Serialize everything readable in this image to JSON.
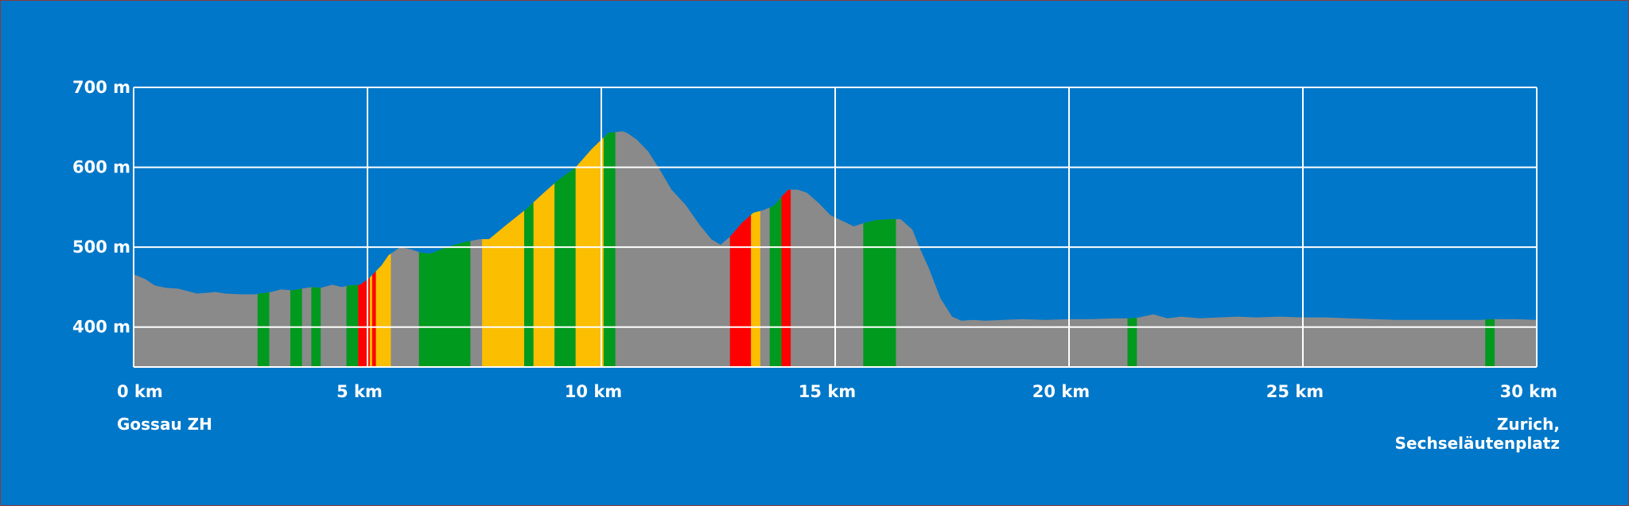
{
  "chart_data": {
    "type": "area",
    "title": "",
    "xlabel": "",
    "ylabel": "",
    "xlim": [
      0,
      30
    ],
    "ylim": [
      350,
      700
    ],
    "x_ticks": [
      0,
      5,
      10,
      15,
      20,
      25,
      30
    ],
    "x_tick_labels": [
      "0 km",
      "5 km",
      "10 km",
      "15 km",
      "20 km",
      "25 km",
      "30 km"
    ],
    "y_ticks": [
      400,
      500,
      600,
      700
    ],
    "y_tick_labels": [
      "400 m",
      "500 m",
      "600 m",
      "700 m"
    ],
    "grid": true,
    "colors": {
      "background": "#0077c8",
      "terrain": "#8a8a8a",
      "grid": "#ffffff",
      "green": "#009a1e",
      "yellow": "#fbbe00",
      "red": "#ff0000"
    },
    "start_label": "Gossau ZH",
    "end_label": [
      "Zurich,",
      "Sechseläutenplatz"
    ],
    "profile": {
      "x": [
        0,
        0.25,
        0.45,
        0.7,
        0.95,
        1.15,
        1.35,
        1.6,
        1.75,
        1.95,
        2.3,
        2.6,
        2.95,
        3.15,
        3.4,
        3.6,
        3.8,
        4.0,
        4.25,
        4.45,
        4.6,
        4.85,
        5.05,
        5.3,
        5.45,
        5.7,
        5.95,
        6.15,
        6.35,
        6.7,
        7.05,
        7.4,
        7.6,
        7.95,
        8.4,
        8.75,
        9.1,
        9.45,
        9.8,
        10.15,
        10.45,
        10.55,
        10.75,
        11.0,
        11.25,
        11.5,
        11.8,
        12.1,
        12.35,
        12.55,
        12.75,
        13.0,
        13.25,
        13.45,
        13.7,
        13.85,
        14.0,
        14.2,
        14.4,
        14.65,
        14.9,
        15.15,
        15.4,
        15.6,
        15.9,
        16.2,
        16.4,
        16.65,
        16.8,
        17.0,
        17.25,
        17.5,
        17.7,
        17.95,
        18.2,
        18.6,
        19.0,
        19.5,
        20.0,
        20.5,
        21.0,
        21.3,
        21.5,
        21.8,
        22.1,
        22.4,
        22.8,
        23.2,
        23.6,
        24.0,
        24.5,
        25.0,
        25.5,
        26.0,
        26.5,
        27.0,
        27.5,
        28.0,
        28.5,
        28.8,
        29.1,
        29.5,
        30.0
      ],
      "elev": [
        466,
        460,
        452,
        449,
        448,
        445,
        442,
        443,
        444,
        442,
        441,
        441,
        444,
        447,
        446,
        448,
        450,
        449,
        453,
        450,
        452,
        453,
        462,
        477,
        490,
        500,
        497,
        493,
        492,
        500,
        506,
        510,
        510,
        527,
        548,
        567,
        585,
        600,
        623,
        643,
        645,
        643,
        635,
        620,
        597,
        572,
        553,
        528,
        510,
        503,
        513,
        530,
        543,
        546,
        552,
        563,
        572,
        572,
        568,
        555,
        540,
        533,
        526,
        530,
        534,
        535,
        535,
        522,
        500,
        474,
        436,
        413,
        408,
        409,
        408,
        409,
        410,
        409,
        410,
        410,
        411,
        411,
        412,
        416,
        411,
        413,
        411,
        412,
        413,
        412,
        413,
        412,
        412,
        411,
        410,
        409,
        409,
        409,
        409,
        409,
        410,
        410,
        409
      ]
    },
    "segments": [
      {
        "from": 2.65,
        "to": 2.9,
        "color": "green"
      },
      {
        "from": 3.35,
        "to": 3.6,
        "color": "green"
      },
      {
        "from": 3.8,
        "to": 4.0,
        "color": "green"
      },
      {
        "from": 4.55,
        "to": 4.8,
        "color": "green"
      },
      {
        "from": 4.8,
        "to": 5.05,
        "color": "red"
      },
      {
        "from": 5.05,
        "to": 5.1,
        "color": "yellow"
      },
      {
        "from": 5.1,
        "to": 5.18,
        "color": "red"
      },
      {
        "from": 5.18,
        "to": 5.5,
        "color": "yellow"
      },
      {
        "from": 6.1,
        "to": 7.2,
        "color": "green"
      },
      {
        "from": 7.45,
        "to": 8.35,
        "color": "yellow"
      },
      {
        "from": 8.35,
        "to": 8.55,
        "color": "green"
      },
      {
        "from": 8.55,
        "to": 9.0,
        "color": "yellow"
      },
      {
        "from": 9.0,
        "to": 9.45,
        "color": "green"
      },
      {
        "from": 9.45,
        "to": 10.05,
        "color": "yellow"
      },
      {
        "from": 10.05,
        "to": 10.3,
        "color": "green"
      },
      {
        "from": 12.75,
        "to": 13.2,
        "color": "red"
      },
      {
        "from": 13.2,
        "to": 13.4,
        "color": "yellow"
      },
      {
        "from": 13.6,
        "to": 13.85,
        "color": "green"
      },
      {
        "from": 13.85,
        "to": 14.05,
        "color": "red"
      },
      {
        "from": 15.6,
        "to": 16.3,
        "color": "green"
      },
      {
        "from": 21.25,
        "to": 21.45,
        "color": "green"
      },
      {
        "from": 28.9,
        "to": 29.1,
        "color": "green"
      }
    ]
  }
}
